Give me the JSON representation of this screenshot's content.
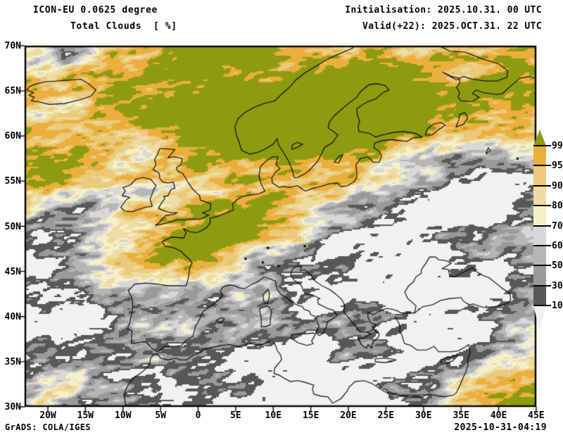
{
  "header": {
    "model": "ICON-EU 0.0625 degree",
    "field": "Total Clouds  [ %]",
    "init": "Initialisation: 2025.10.31. 00 UTC",
    "valid": "Valid(+22): 2025.OCT.31. 22 UTC"
  },
  "footer": {
    "credit": "GrADS: COLA/IGES",
    "timestamp": "2025-10-31-04:19"
  },
  "axes": {
    "lat": [
      "70N",
      "65N",
      "60N",
      "55N",
      "50N",
      "45N",
      "40N",
      "35N",
      "30N"
    ],
    "lon": [
      "20W",
      "15W",
      "10W",
      "5W",
      "0",
      "5E",
      "10E",
      "15E",
      "20E",
      "25E",
      "30E",
      "35E",
      "40E",
      "45E"
    ]
  },
  "colorbar": {
    "labels": [
      "99.5",
      "95",
      "90",
      "80",
      "70",
      "60",
      "50",
      "30",
      "10"
    ],
    "values": [
      99.5,
      95,
      90,
      80,
      70,
      60,
      50,
      30,
      10
    ],
    "unit": "%"
  },
  "map": {
    "palette": {
      "ge_99_5": "#8E9B11",
      "p95_99": "#EBAF3E",
      "p90_95": "#EACB7D",
      "p80_90": "#EEDCA4",
      "p70_80": "#F5F0C9",
      "p60_70": "#D8D8D8",
      "p50_60": "#B6B6B6",
      "p30_50": "#9A9A9A",
      "p10_30": "#585858",
      "lt_10": "#F1F1F1"
    },
    "coastline_color": "#000000",
    "border_color": "#000000"
  }
}
